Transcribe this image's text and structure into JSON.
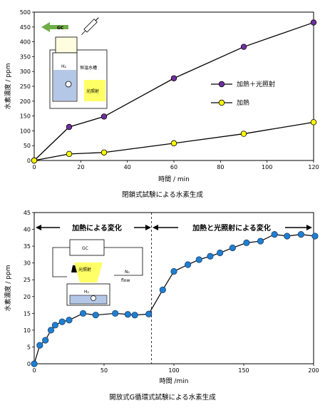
{
  "chart_data": [
    {
      "type": "line",
      "xlabel": "時間 / min",
      "ylabel": "水素濃度 / ppm",
      "xlim": [
        0,
        120
      ],
      "ylim": [
        0,
        500
      ],
      "xticks": [
        "0",
        "20",
        "40",
        "60",
        "80",
        "100",
        "120"
      ],
      "yticks": [
        "0",
        "50",
        "100",
        "150",
        "200",
        "250",
        "300",
        "350",
        "400",
        "450",
        "500"
      ],
      "caption": "閉鎖式試験による水素生成",
      "legend_position": "right",
      "series": [
        {
          "name": "加熱＋光照射",
          "color": "#7030a0",
          "x": [
            0,
            15,
            30,
            60,
            90,
            120
          ],
          "y": [
            0,
            113,
            148,
            277,
            383,
            465
          ]
        },
        {
          "name": "加熱",
          "color": "#ffff00",
          "x": [
            0,
            15,
            30,
            60,
            90,
            120
          ],
          "y": [
            0,
            22,
            27,
            58,
            90,
            129
          ]
        }
      ],
      "inset": {
        "gc": "GC",
        "h2": "H₂",
        "bath": "恒温水槽",
        "light": "光照射"
      }
    },
    {
      "type": "scatter",
      "xlabel": "時間 /min",
      "ylabel": "水素濃度 / ppm",
      "xlim": [
        0,
        200
      ],
      "ylim": [
        0,
        45
      ],
      "xticks": [
        "0",
        "50",
        "100",
        "150",
        "200"
      ],
      "yticks": [
        "0",
        "5",
        "10",
        "15",
        "20",
        "25",
        "30",
        "35",
        "40",
        "45"
      ],
      "caption": "開放式G循環式試験による水素生成",
      "divider_x": 84,
      "annotations": [
        "加熱による変化",
        "加熱と光照射による変化"
      ],
      "series": [
        {
          "color": "#1f7fd0",
          "x": [
            0,
            4,
            8,
            12,
            15,
            20,
            25,
            35,
            44,
            58,
            67,
            72,
            82,
            92,
            100,
            110,
            118,
            126,
            133,
            142,
            152,
            162,
            172,
            181,
            191,
            201
          ],
          "y": [
            0,
            5.5,
            7,
            10,
            11.5,
            12.5,
            13,
            15,
            14.5,
            15,
            14.7,
            14.5,
            14.8,
            22,
            27.5,
            29.5,
            31,
            32,
            33,
            34.5,
            36,
            36.5,
            38.5,
            38,
            38.5,
            38
          ]
        }
      ],
      "inset": {
        "gc": "GC",
        "light": "光照射",
        "n2": "N₂",
        "flow": "flow",
        "h2": "H₂"
      }
    }
  ]
}
